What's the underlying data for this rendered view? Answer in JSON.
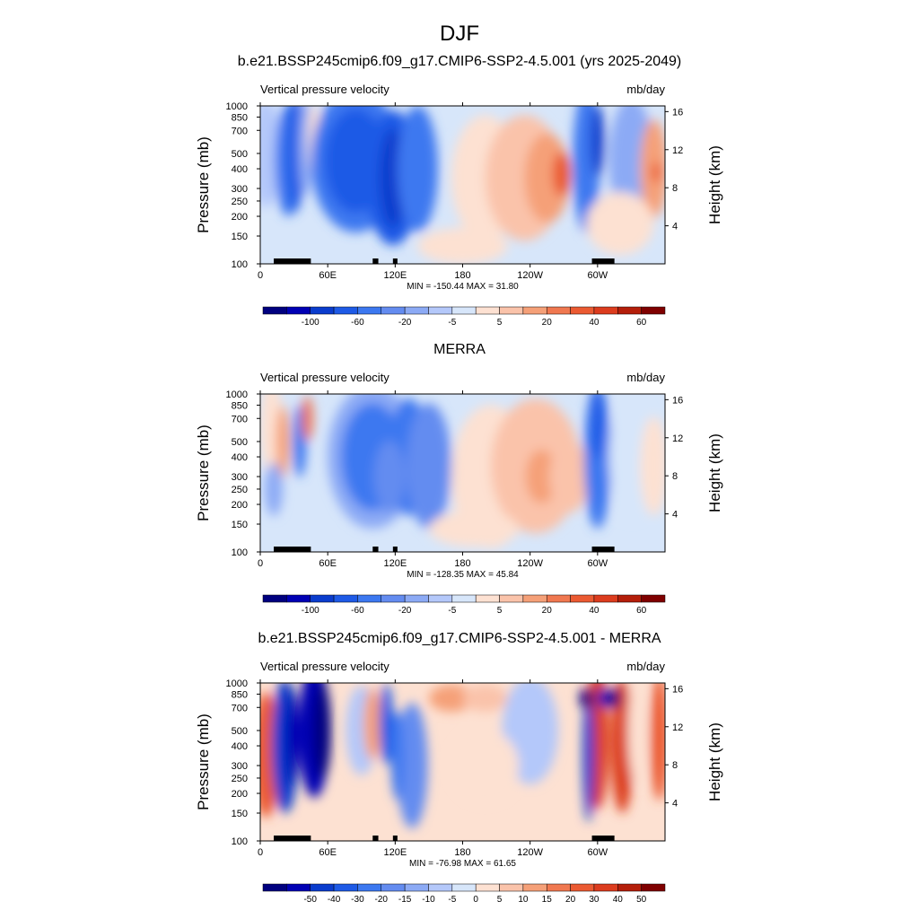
{
  "figure": {
    "title": "DJF",
    "left_label": "Vertical pressure velocity",
    "right_label": "mb/day",
    "ylabel_left": "Pressure (mb)",
    "ylabel_right": "Height (km)"
  },
  "axes": {
    "x_ticks": [
      "0",
      "60E",
      "120E",
      "180",
      "120W",
      "60W"
    ],
    "y_ticks": [
      "100",
      "150",
      "200",
      "250",
      "300",
      "400",
      "500",
      "700",
      "850",
      "1000"
    ],
    "height_ticks": [
      "4",
      "8",
      "12",
      "16"
    ]
  },
  "colors": {
    "abs_scale": [
      "#00007f",
      "#0000b4",
      "#0a3ccd",
      "#1e5ae6",
      "#3c78f0",
      "#648cf0",
      "#8caaf5",
      "#b4c8fa",
      "#d7e6fa",
      "#fde1d2",
      "#fac3aa",
      "#f5a078",
      "#f07850",
      "#eb5a32",
      "#dc3c1e",
      "#b41e0a",
      "#7f0000"
    ],
    "diff_scale": [
      "#00007f",
      "#0000b4",
      "#0a3ccd",
      "#1e5ae6",
      "#3c78f0",
      "#648cf0",
      "#8caaf5",
      "#b4c8fa",
      "#d7e6fa",
      "#fde1d2",
      "#fac3aa",
      "#f5a078",
      "#f07850",
      "#eb5a32",
      "#dc3c1e",
      "#b41e0a",
      "#7f0000"
    ]
  },
  "chart_data": [
    {
      "type": "heatmap",
      "title": "b.e21.BSSP245cmip6.f09_g17.CMIP6-SSP2-4.5.001 (yrs 2025-2049)",
      "stats": "MIN = -150.44  MAX =  31.80",
      "colorbar_labels": [
        "-100",
        "-60",
        "-20",
        "-5",
        "5",
        "20",
        "40",
        "60"
      ],
      "x_range": [
        0,
        360
      ],
      "y_range_mb": [
        1000,
        100
      ],
      "height_range_km": [
        0,
        16.6
      ]
    },
    {
      "type": "heatmap",
      "title": "MERRA",
      "stats": "MIN = -128.35  MAX =  45.84",
      "colorbar_labels": [
        "-100",
        "-60",
        "-20",
        "-5",
        "5",
        "20",
        "40",
        "60"
      ],
      "x_range": [
        0,
        360
      ],
      "y_range_mb": [
        1000,
        100
      ],
      "height_range_km": [
        0,
        16.6
      ]
    },
    {
      "type": "heatmap",
      "title": "b.e21.BSSP245cmip6.f09_g17.CMIP6-SSP2-4.5.001 - MERRA",
      "stats": "MIN = -76.98  MAX =  61.65",
      "colorbar_labels": [
        "-50",
        "-40",
        "-30",
        "-20",
        "-15",
        "-10",
        "-5",
        "0",
        "5",
        "10",
        "15",
        "20",
        "30",
        "40",
        "50"
      ],
      "x_range": [
        0,
        360
      ],
      "y_range_mb": [
        1000,
        100
      ],
      "height_range_km": [
        0,
        16.6
      ]
    }
  ]
}
